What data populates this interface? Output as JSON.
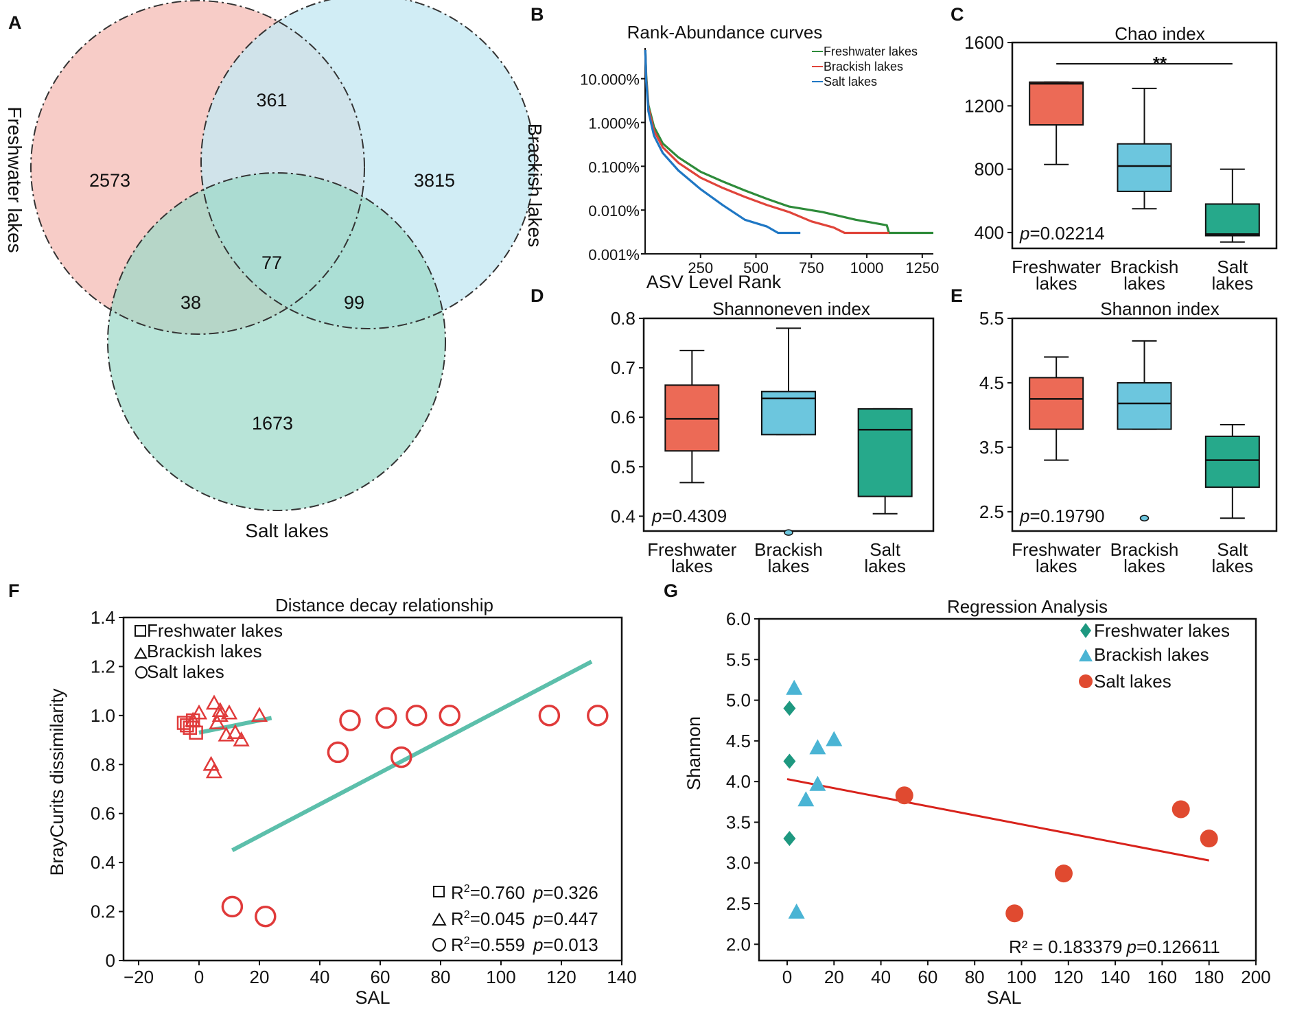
{
  "panel_letters": {
    "a": "A",
    "b": "B",
    "c": "C",
    "d": "D",
    "e": "E",
    "f": "F",
    "g": "G"
  },
  "colors": {
    "freshwater_box": "#ec6a56",
    "brackish_box": "#6cc6de",
    "salt_box": "#26a98b",
    "venn_fresh": "#f7c9c4",
    "venn_brackish": "#c6e8f2",
    "venn_salt": "#9dd9c9",
    "curve_fresh": "#2e8b3a",
    "curve_brackish": "#e0443a",
    "curve_salt": "#1f77c4",
    "decay_marker": "#e03a3a",
    "decay_line": "#5cbfab",
    "reg_fresh": "#1e9880",
    "reg_brackish": "#4ab4d4",
    "reg_salt": "#e04a30",
    "reg_line": "#d8231c"
  },
  "chart_data": [
    {
      "panel": "A",
      "type": "venn",
      "sets": [
        "Freshwater lakes",
        "Brackish lakes",
        "Salt lakes"
      ],
      "regions": {
        "fresh_only": "2573",
        "brackish_only": "3815",
        "salt_only": "1673",
        "fresh_brackish": "361",
        "fresh_salt": "38",
        "brackish_salt": "99",
        "all": "77"
      }
    },
    {
      "panel": "B",
      "type": "line",
      "title": "Rank-Abundance curves",
      "xlabel": "ASV Level Rank",
      "ylabel": "",
      "xlim": [
        0,
        1300
      ],
      "ylim_log10": [
        -3,
        1.7
      ],
      "x_ticks": [
        "250",
        "500",
        "750",
        "1000",
        "1250"
      ],
      "x_tick_values": [
        250,
        500,
        750,
        1000,
        1250
      ],
      "y_ticks": [
        "10.000%",
        "1.000%",
        "0.100%",
        "0.010%",
        "0.001%"
      ],
      "y_tick_values": [
        10,
        1,
        0.1,
        0.01,
        0.001
      ],
      "series": [
        {
          "name": "Freshwater lakes",
          "points": [
            [
              1,
              45
            ],
            [
              5,
              12
            ],
            [
              15,
              2.5
            ],
            [
              40,
              0.8
            ],
            [
              80,
              0.33
            ],
            [
              150,
              0.16
            ],
            [
              250,
              0.075
            ],
            [
              350,
              0.045
            ],
            [
              450,
              0.028
            ],
            [
              550,
              0.018
            ],
            [
              650,
              0.012
            ],
            [
              800,
              0.009
            ],
            [
              950,
              0.006
            ],
            [
              1090,
              0.0045
            ],
            [
              1100,
              0.003
            ],
            [
              1300,
              0.003
            ]
          ]
        },
        {
          "name": "Brackish lakes",
          "points": [
            [
              1,
              45
            ],
            [
              5,
              10
            ],
            [
              15,
              2.2
            ],
            [
              40,
              0.65
            ],
            [
              80,
              0.27
            ],
            [
              150,
              0.12
            ],
            [
              250,
              0.055
            ],
            [
              350,
              0.032
            ],
            [
              450,
              0.02
            ],
            [
              550,
              0.013
            ],
            [
              650,
              0.009
            ],
            [
              750,
              0.0055
            ],
            [
              850,
              0.004
            ],
            [
              900,
              0.003
            ],
            [
              1100,
              0.003
            ]
          ]
        },
        {
          "name": "Salt lakes",
          "points": [
            [
              1,
              45
            ],
            [
              5,
              9
            ],
            [
              15,
              1.8
            ],
            [
              40,
              0.5
            ],
            [
              80,
              0.2
            ],
            [
              150,
              0.08
            ],
            [
              250,
              0.03
            ],
            [
              350,
              0.013
            ],
            [
              450,
              0.006
            ],
            [
              550,
              0.0042
            ],
            [
              600,
              0.003
            ],
            [
              700,
              0.003
            ]
          ]
        }
      ]
    },
    {
      "panel": "C",
      "type": "box",
      "title": "Chao index",
      "ylim": [
        300,
        1600
      ],
      "y_ticks": [
        "400",
        "800",
        "1200",
        "1600"
      ],
      "y_tick_values": [
        400,
        800,
        1200,
        1600
      ],
      "categories": [
        [
          "Freshwater",
          "lakes"
        ],
        [
          "Brackish",
          "lakes"
        ],
        [
          "Salt",
          "lakes"
        ]
      ],
      "boxes": [
        {
          "min": 830,
          "q1": 1080,
          "median": 1340,
          "q3": 1350,
          "max": 1350
        },
        {
          "min": 550,
          "q1": 660,
          "median": 820,
          "q3": 960,
          "max": 1310
        },
        {
          "min": 340,
          "q1": 380,
          "median": 390,
          "q3": 580,
          "max": 800
        }
      ],
      "outliers": [],
      "p_label": "p",
      "p_value": "=0.02214",
      "significance": "**"
    },
    {
      "panel": "D",
      "type": "box",
      "title": "Shannoneven  index",
      "ylim": [
        0.37,
        0.8
      ],
      "y_ticks": [
        "0.4",
        "0.5",
        "0.6",
        "0.7",
        "0.8"
      ],
      "y_tick_values": [
        0.4,
        0.5,
        0.6,
        0.7,
        0.8
      ],
      "categories": [
        [
          "Freshwater",
          "lakes"
        ],
        [
          "Brackish",
          "lakes"
        ],
        [
          "Salt",
          "lakes"
        ]
      ],
      "boxes": [
        {
          "min": 0.468,
          "q1": 0.532,
          "median": 0.597,
          "q3": 0.665,
          "max": 0.735
        },
        {
          "min": 0.565,
          "q1": 0.565,
          "median": 0.638,
          "q3": 0.652,
          "max": 0.78
        },
        {
          "min": 0.405,
          "q1": 0.44,
          "median": 0.575,
          "q3": 0.617,
          "max": 0.617
        }
      ],
      "outliers": [
        {
          "group": 1,
          "value": 0.367
        }
      ],
      "p_label": "p",
      "p_value": "=0.4309"
    },
    {
      "panel": "E",
      "type": "box",
      "title": "Shannon index",
      "ylim": [
        2.2,
        5.5
      ],
      "y_ticks": [
        "2.5",
        "3.5",
        "4.5",
        "5.5"
      ],
      "y_tick_values": [
        2.5,
        3.5,
        4.5,
        5.5
      ],
      "categories": [
        [
          "Freshwater",
          "lakes"
        ],
        [
          "Brackish",
          "lakes"
        ],
        [
          "Salt",
          "lakes"
        ]
      ],
      "boxes": [
        {
          "min": 3.3,
          "q1": 3.78,
          "median": 4.25,
          "q3": 4.58,
          "max": 4.9
        },
        {
          "min": 3.78,
          "q1": 3.78,
          "median": 4.18,
          "q3": 4.5,
          "max": 5.15
        },
        {
          "min": 2.4,
          "q1": 2.88,
          "median": 3.3,
          "q3": 3.67,
          "max": 3.85
        }
      ],
      "outliers": [
        {
          "group": 1,
          "value": 2.4
        }
      ],
      "p_label": "p",
      "p_value": "=0.19790"
    },
    {
      "panel": "F",
      "type": "scatter",
      "title": "Distance decay relationship",
      "xlabel": "SAL",
      "ylabel": "BrayCurits dissimilarity",
      "xlim": [
        -25,
        140
      ],
      "ylim": [
        0,
        1.4
      ],
      "x_ticks": [
        "−20",
        "0",
        "20",
        "40",
        "60",
        "80",
        "100",
        "120",
        "140"
      ],
      "x_tick_values": [
        -20,
        0,
        20,
        40,
        60,
        80,
        100,
        120,
        140
      ],
      "y_ticks": [
        "0",
        "0.2",
        "0.4",
        "0.6",
        "0.8",
        "1.0",
        "1.2",
        "1.4"
      ],
      "y_tick_values": [
        0,
        0.2,
        0.4,
        0.6,
        0.8,
        1.0,
        1.2,
        1.4
      ],
      "series": [
        {
          "name": "Freshwater lakes",
          "marker": "square",
          "points": [
            [
              -5,
              0.97
            ],
            [
              -3,
              0.95
            ],
            [
              -2,
              0.98
            ],
            [
              -1,
              0.93
            ],
            [
              -4,
              0.96
            ]
          ]
        },
        {
          "name": "Brackish lakes",
          "marker": "triangle",
          "points": [
            [
              -2,
              0.98
            ],
            [
              0,
              1.01
            ],
            [
              5,
              1.05
            ],
            [
              7,
              1.02
            ],
            [
              10,
              1.01
            ],
            [
              6,
              0.97
            ],
            [
              9,
              0.92
            ],
            [
              12,
              0.93
            ],
            [
              14,
              0.9
            ],
            [
              4,
              0.8
            ],
            [
              5,
              0.77
            ],
            [
              20,
              1.0
            ],
            [
              7,
              1.0
            ]
          ]
        },
        {
          "name": "Salt lakes",
          "marker": "circle",
          "points": [
            [
              46,
              0.85
            ],
            [
              50,
              0.98
            ],
            [
              62,
              0.99
            ],
            [
              72,
              1.0
            ],
            [
              83,
              1.0
            ],
            [
              67,
              0.83
            ],
            [
              116,
              1.0
            ],
            [
              132,
              1.0
            ],
            [
              11,
              0.22
            ],
            [
              22,
              0.18
            ]
          ]
        }
      ],
      "fits": [
        {
          "x": [
            0,
            24
          ],
          "y": [
            0.93,
            0.99
          ]
        },
        {
          "x": [
            11,
            130
          ],
          "y": [
            0.45,
            1.22
          ]
        }
      ],
      "stats": [
        {
          "r2": "0.760",
          "p": "=0.326"
        },
        {
          "r2": "0.045",
          "p": "=0.447"
        },
        {
          "r2": "0.559",
          "p": "=0.013"
        }
      ],
      "r_label": "R",
      "r_sup": "2",
      "r_eq": "=",
      "p_label": "p"
    },
    {
      "panel": "G",
      "type": "scatter",
      "title": "Regression Analysis",
      "xlabel": "SAL",
      "ylabel": "Shannon",
      "xlim": [
        -12,
        200
      ],
      "ylim": [
        1.8,
        6.0
      ],
      "x_ticks": [
        "0",
        "20",
        "40",
        "60",
        "80",
        "100",
        "120",
        "140",
        "160",
        "180",
        "200"
      ],
      "x_tick_values": [
        0,
        20,
        40,
        60,
        80,
        100,
        120,
        140,
        160,
        180,
        200
      ],
      "y_ticks": [
        "2.0",
        "2.5",
        "3.0",
        "3.5",
        "4.0",
        "4.5",
        "5.0",
        "5.5",
        "6.0"
      ],
      "y_tick_values": [
        2.0,
        2.5,
        3.0,
        3.5,
        4.0,
        4.5,
        5.0,
        5.5,
        6.0
      ],
      "series": [
        {
          "name": "Freshwater lakes",
          "marker": "diamond",
          "points": [
            [
              1,
              4.9
            ],
            [
              1,
              4.25
            ],
            [
              1,
              3.3
            ]
          ]
        },
        {
          "name": "Brackish lakes",
          "marker": "triangle",
          "points": [
            [
              3,
              5.15
            ],
            [
              13,
              4.42
            ],
            [
              20,
              4.52
            ],
            [
              13,
              3.97
            ],
            [
              8,
              3.78
            ],
            [
              4,
              2.4
            ]
          ]
        },
        {
          "name": "Salt lakes",
          "marker": "circle",
          "points": [
            [
              50,
              3.83
            ],
            [
              97,
              2.38
            ],
            [
              118,
              2.87
            ],
            [
              168,
              3.66
            ],
            [
              180,
              3.3
            ]
          ]
        }
      ],
      "fit": {
        "x": [
          0,
          180
        ],
        "y": [
          4.03,
          3.03
        ]
      },
      "annotation": "R² = 0.183379",
      "p_label": "p",
      "p_value": "=0.126611"
    }
  ]
}
